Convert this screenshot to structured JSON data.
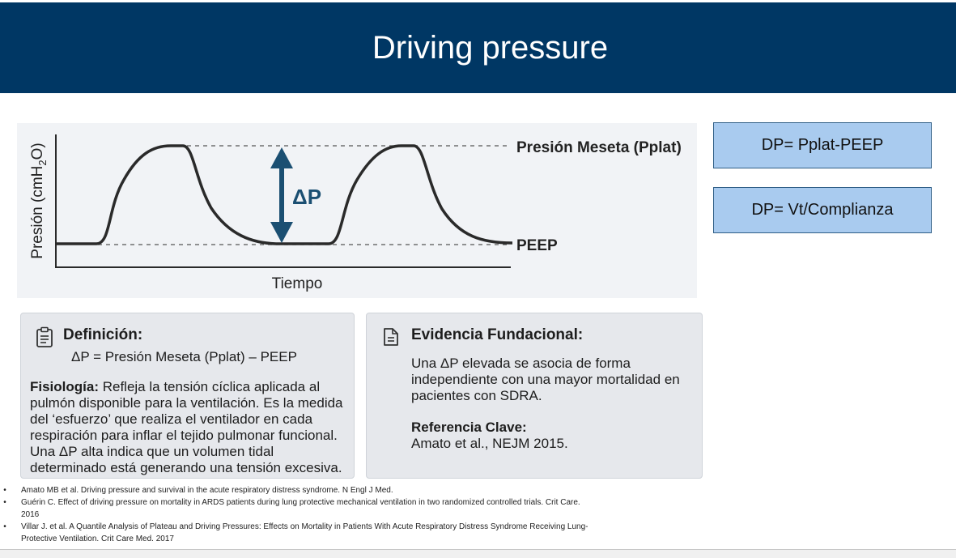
{
  "title": "Driving pressure",
  "diagram": {
    "ylabel_main": "Presión (cmH",
    "ylabel_sub": "2",
    "ylabel_end": "O)",
    "xlabel": "Tiempo",
    "pplat_label": "Presión Meseta (Pplat)",
    "peep_label": "PEEP",
    "delta_label": "ΔP",
    "colors": {
      "curve": "#2a2a2a",
      "arrow": "#1b4f72"
    }
  },
  "formulas": [
    {
      "text": "DP= Pplat-PEEP"
    },
    {
      "text": "DP= Vt/Complianza"
    }
  ],
  "definition": {
    "title": "Definición:",
    "formula": "ΔP = Presión Meseta (Pplat) – PEEP",
    "physio_label": "Fisiología:",
    "physio_line1": " Refleja la tensión cíclica aplicada al",
    "lines": [
      "pulmón disponible para la ventilación. Es la medida",
      "del ‘esfuerzo’ que realiza el ventilador en cada",
      "respiración para inflar el tejido pulmonar funcional.",
      "Una ΔP alta indica que un volumen tidal",
      "determinado está generando una tensión excesiva."
    ]
  },
  "evidence": {
    "title": "Evidencia Fundacional:",
    "lines": [
      "Una ΔP elevada se asocia de forma",
      "independiente con una mayor mortalidad en",
      "pacientes con SDRA."
    ],
    "ref_label": "Referencia Clave:",
    "ref_text": "Amato et al., NEJM 2015."
  },
  "references": [
    {
      "lines": [
        "Amato MB et al. Driving pressure and survival in the acute respiratory distress syndrome. N Engl J Med."
      ]
    },
    {
      "lines": [
        "Guérin C. Effect of driving pressure on mortality in ARDS patients during lung protective mechanical ventilation in two randomized controlled trials. Crit Care.",
        "2016"
      ]
    },
    {
      "lines": [
        "Villar J. et al. A Quantile Analysis of Plateau and Driving Pressures: Effects on Mortality in Patients With Acute Respiratory Distress Syndrome Receiving Lung-",
        "Protective Ventilation. Crit Care Med. 2017"
      ]
    }
  ]
}
